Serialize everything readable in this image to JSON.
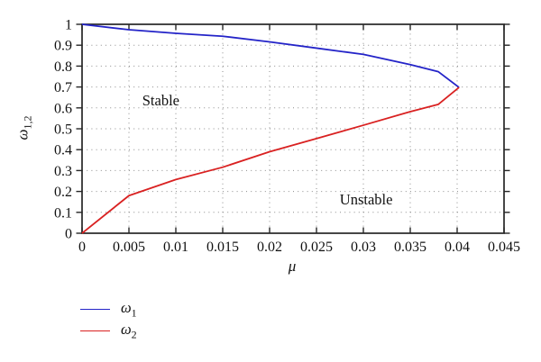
{
  "chart_data": {
    "type": "line",
    "title": "",
    "xlabel": "μ",
    "ylabel": {
      "base": "ω",
      "sub": "1,2"
    },
    "xlim": [
      0,
      0.045
    ],
    "ylim": [
      0,
      1
    ],
    "xticks": [
      0,
      0.005,
      0.01,
      0.015,
      0.02,
      0.025,
      0.03,
      0.035,
      0.04,
      0.045
    ],
    "xtick_labels": [
      "0",
      "0.005",
      "0.01",
      "0.015",
      "0.02",
      "0.025",
      "0.03",
      "0.035",
      "0.04",
      "0.045"
    ],
    "yticks": [
      0,
      0.1,
      0.2,
      0.3,
      0.4,
      0.5,
      0.6,
      0.7,
      0.8,
      0.9,
      1
    ],
    "ytick_labels": [
      "0",
      "0.1",
      "0.2",
      "0.3",
      "0.4",
      "0.5",
      "0.6",
      "0.7",
      "0.8",
      "0.9",
      "1"
    ],
    "grid": "dotted",
    "grid_color": "#8c8c8c",
    "border_color": "#262626",
    "background": "#ffffff",
    "legend_position": "bottom-left",
    "annotations": [
      {
        "text": "Stable",
        "x": 0.0084,
        "y": 0.634
      },
      {
        "text": "Unstable",
        "x": 0.0303,
        "y": 0.16
      }
    ],
    "series": [
      {
        "name": "omega1",
        "label": {
          "base": "ω",
          "sub": "1"
        },
        "color": "#2424c8",
        "x": [
          0,
          0.005,
          0.01,
          0.015,
          0.02,
          0.025,
          0.03,
          0.035,
          0.038,
          0.0402
        ],
        "y": [
          1,
          0.974,
          0.957,
          0.943,
          0.916,
          0.886,
          0.856,
          0.807,
          0.773,
          0.698
        ]
      },
      {
        "name": "omega2",
        "label": {
          "base": "ω",
          "sub": "2"
        },
        "color": "#d92121",
        "x": [
          0,
          0.005,
          0.01,
          0.015,
          0.02,
          0.025,
          0.03,
          0.035,
          0.038,
          0.0402
        ],
        "y": [
          0,
          0.18,
          0.257,
          0.316,
          0.39,
          0.453,
          0.517,
          0.582,
          0.617,
          0.698
        ]
      }
    ]
  }
}
